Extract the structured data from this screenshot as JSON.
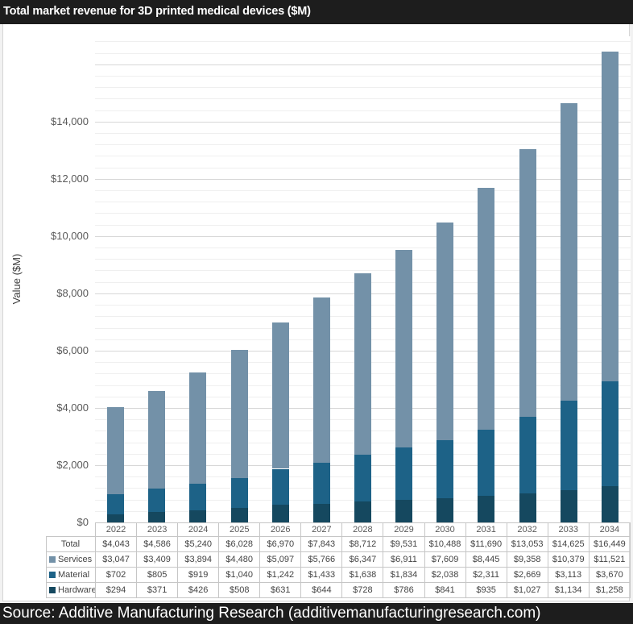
{
  "header": {
    "title": "Total market revenue for 3D printed medical devices ($M)"
  },
  "footer": {
    "source_text": "Source: Additive Manufacturing Research (additivemanufacturingresearch.com)"
  },
  "chart_data": {
    "type": "bar",
    "stacked": true,
    "title": "Total market revenue for 3D printed medical devices ($M)",
    "xlabel": "",
    "ylabel": "Value ($M)",
    "categories": [
      "2022",
      "2023",
      "2024",
      "2025",
      "2026",
      "2027",
      "2028",
      "2029",
      "2030",
      "2031",
      "2032",
      "2033",
      "2034"
    ],
    "series": [
      {
        "name": "Hardware",
        "color": "#15485f",
        "values": [
          294,
          371,
          426,
          508,
          631,
          644,
          728,
          786,
          841,
          935,
          1027,
          1134,
          1258
        ]
      },
      {
        "name": "Material",
        "color": "#1d6287",
        "values": [
          702,
          805,
          919,
          1040,
          1242,
          1433,
          1638,
          1834,
          2038,
          2311,
          2669,
          3113,
          3670
        ]
      },
      {
        "name": "Services",
        "color": "#7391a8",
        "values": [
          3047,
          3409,
          3894,
          4480,
          5097,
          5766,
          6347,
          6911,
          7609,
          8445,
          9358,
          10379,
          11521
        ]
      }
    ],
    "totals": [
      4043,
      4586,
      5240,
      6028,
      6970,
      7843,
      8712,
      9531,
      10488,
      11690,
      13053,
      14625,
      16449
    ],
    "ylim": [
      0,
      16980
    ],
    "y_major_step": 2000,
    "y_minor_step": 400,
    "currency_prefix": "$",
    "grid": true,
    "legend_position": "table-rows"
  },
  "table": {
    "total_label": "Total",
    "row_order": [
      "Total",
      "Services",
      "Material",
      "Hardware"
    ]
  }
}
